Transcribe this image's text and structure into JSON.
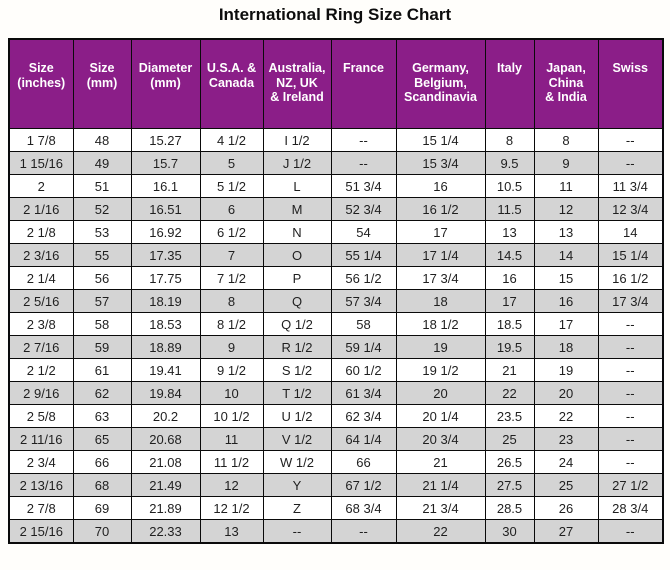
{
  "page_title": "International Ring Size Chart",
  "colors": {
    "header_bg": "#8B1E88",
    "row_alt_bg": "#D4D4D4",
    "border": "#0a0a0a",
    "header_text": "#ffffff",
    "cell_text": "#1f1f1f"
  },
  "chart_data": {
    "type": "table",
    "title": "International Ring Size Chart",
    "columns": [
      "Size\n(inches)",
      "Size\n(mm)",
      "Diameter\n(mm)",
      "U.S.A. &\nCanada",
      "Australia,\nNZ, UK\n& Ireland",
      "France",
      "Germany,\nBelgium,\nScandinavia",
      "Italy",
      "Japan,\nChina\n& India",
      "Swiss"
    ],
    "rows": [
      [
        "1 7/8",
        "48",
        "15.27",
        "4 1/2",
        "I 1/2",
        "--",
        "15 1/4",
        "8",
        "8",
        "--"
      ],
      [
        "1 15/16",
        "49",
        "15.7",
        "5",
        "J 1/2",
        "--",
        "15 3/4",
        "9.5",
        "9",
        "--"
      ],
      [
        "2",
        "51",
        "16.1",
        "5 1/2",
        "L",
        "51 3/4",
        "16",
        "10.5",
        "11",
        "11 3/4"
      ],
      [
        "2 1/16",
        "52",
        "16.51",
        "6",
        "M",
        "52 3/4",
        "16 1/2",
        "11.5",
        "12",
        "12 3/4"
      ],
      [
        "2 1/8",
        "53",
        "16.92",
        "6 1/2",
        "N",
        "54",
        "17",
        "13",
        "13",
        "14"
      ],
      [
        "2 3/16",
        "55",
        "17.35",
        "7",
        "O",
        "55 1/4",
        "17 1/4",
        "14.5",
        "14",
        "15 1/4"
      ],
      [
        "2 1/4",
        "56",
        "17.75",
        "7 1/2",
        "P",
        "56 1/2",
        "17 3/4",
        "16",
        "15",
        "16 1/2"
      ],
      [
        "2 5/16",
        "57",
        "18.19",
        "8",
        "Q",
        "57 3/4",
        "18",
        "17",
        "16",
        "17 3/4"
      ],
      [
        "2 3/8",
        "58",
        "18.53",
        "8 1/2",
        "Q 1/2",
        "58",
        "18 1/2",
        "18.5",
        "17",
        "--"
      ],
      [
        "2 7/16",
        "59",
        "18.89",
        "9",
        "R 1/2",
        "59 1/4",
        "19",
        "19.5",
        "18",
        "--"
      ],
      [
        "2 1/2",
        "61",
        "19.41",
        "9 1/2",
        "S 1/2",
        "60 1/2",
        "19 1/2",
        "21",
        "19",
        "--"
      ],
      [
        "2 9/16",
        "62",
        "19.84",
        "10",
        "T 1/2",
        "61 3/4",
        "20",
        "22",
        "20",
        "--"
      ],
      [
        "2 5/8",
        "63",
        "20.2",
        "10 1/2",
        "U 1/2",
        "62 3/4",
        "20 1/4",
        "23.5",
        "22",
        "--"
      ],
      [
        "2 11/16",
        "65",
        "20.68",
        "11",
        "V 1/2",
        "64 1/4",
        "20 3/4",
        "25",
        "23",
        "--"
      ],
      [
        "2 3/4",
        "66",
        "21.08",
        "11 1/2",
        "W 1/2",
        "66",
        "21",
        "26.5",
        "24",
        "--"
      ],
      [
        "2 13/16",
        "68",
        "21.49",
        "12",
        "Y",
        "67 1/2",
        "21 1/4",
        "27.5",
        "25",
        "27 1/2"
      ],
      [
        "2 7/8",
        "69",
        "21.89",
        "12 1/2",
        "Z",
        "68 3/4",
        "21 3/4",
        "28.5",
        "26",
        "28 3/4"
      ],
      [
        "2 15/16",
        "70",
        "22.33",
        "13",
        "--",
        "--",
        "22",
        "30",
        "27",
        "--"
      ]
    ]
  }
}
